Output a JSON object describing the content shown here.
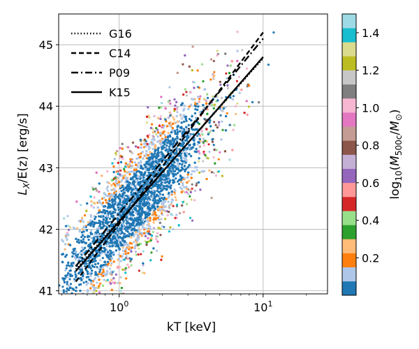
{
  "chart_data": {
    "type": "scatter",
    "xlabel": "kT [keV]",
    "ylabel_main": "L",
    "ylabel_sub": "X",
    "ylabel_rest": "/E(z) [erg/s]",
    "xscale": "log",
    "xlim": [
      0.38,
      28
    ],
    "ylim": [
      40.95,
      45.5
    ],
    "grid": true,
    "x_ticks": [
      {
        "value": 1,
        "base": "10",
        "exp": "0"
      },
      {
        "value": 10,
        "base": "10",
        "exp": "1"
      }
    ],
    "y_ticks": [
      {
        "value": 41,
        "label": "41"
      },
      {
        "value": 42,
        "label": "42"
      },
      {
        "value": 43,
        "label": "43"
      },
      {
        "value": 44,
        "label": "44"
      },
      {
        "value": 45,
        "label": "45"
      }
    ],
    "legend_position": "top-left",
    "lines": [
      {
        "name": "G16",
        "style": "dotted",
        "x": [
          0.5,
          10
        ],
        "y": [
          41.35,
          44.78
        ]
      },
      {
        "name": "C14",
        "style": "dashed",
        "x": [
          0.5,
          10
        ],
        "y": [
          41.15,
          45.2
        ]
      },
      {
        "name": "P09",
        "style": "dashdot",
        "x": [
          0.5,
          10
        ],
        "y": [
          41.4,
          45.1
        ]
      },
      {
        "name": "K15",
        "style": "solid",
        "x": [
          0.5,
          10
        ],
        "y": [
          41.32,
          44.8
        ]
      }
    ],
    "colorbar": {
      "label_prefix": "log",
      "label_sub": "10",
      "label_open": "(",
      "label_M": "M",
      "label_M_sub": "500c",
      "label_slash": "/",
      "label_M2": "M",
      "label_sun_sub": "⊙",
      "label_close": ")",
      "range": [
        0,
        1.5
      ],
      "ticks": [
        0.2,
        0.4,
        0.6,
        0.8,
        1.0,
        1.2,
        1.4
      ],
      "tick_labels": [
        "0.2",
        "0.4",
        "0.6",
        "0.8",
        "1.0",
        "1.2",
        "1.4"
      ],
      "colormap": "tab20",
      "colors": [
        "#1f77b4",
        "#aec7e8",
        "#ff7f0e",
        "#ffbb78",
        "#2ca02c",
        "#98df8a",
        "#d62728",
        "#ff9896",
        "#9467bd",
        "#c5b0d5",
        "#8c564b",
        "#c49c94",
        "#e377c2",
        "#f7b6d2",
        "#7f7f7f",
        "#c7c7c7",
        "#bcbd22",
        "#dbdb8d",
        "#17becf",
        "#9edae5"
      ]
    },
    "scatter_population": {
      "relation_slope": 2.6,
      "relation_intercept": 42.15,
      "logT_mean": 0.12,
      "logT_sd": 0.28,
      "scatter_dex": 0.45,
      "n_points": 6000
    }
  }
}
